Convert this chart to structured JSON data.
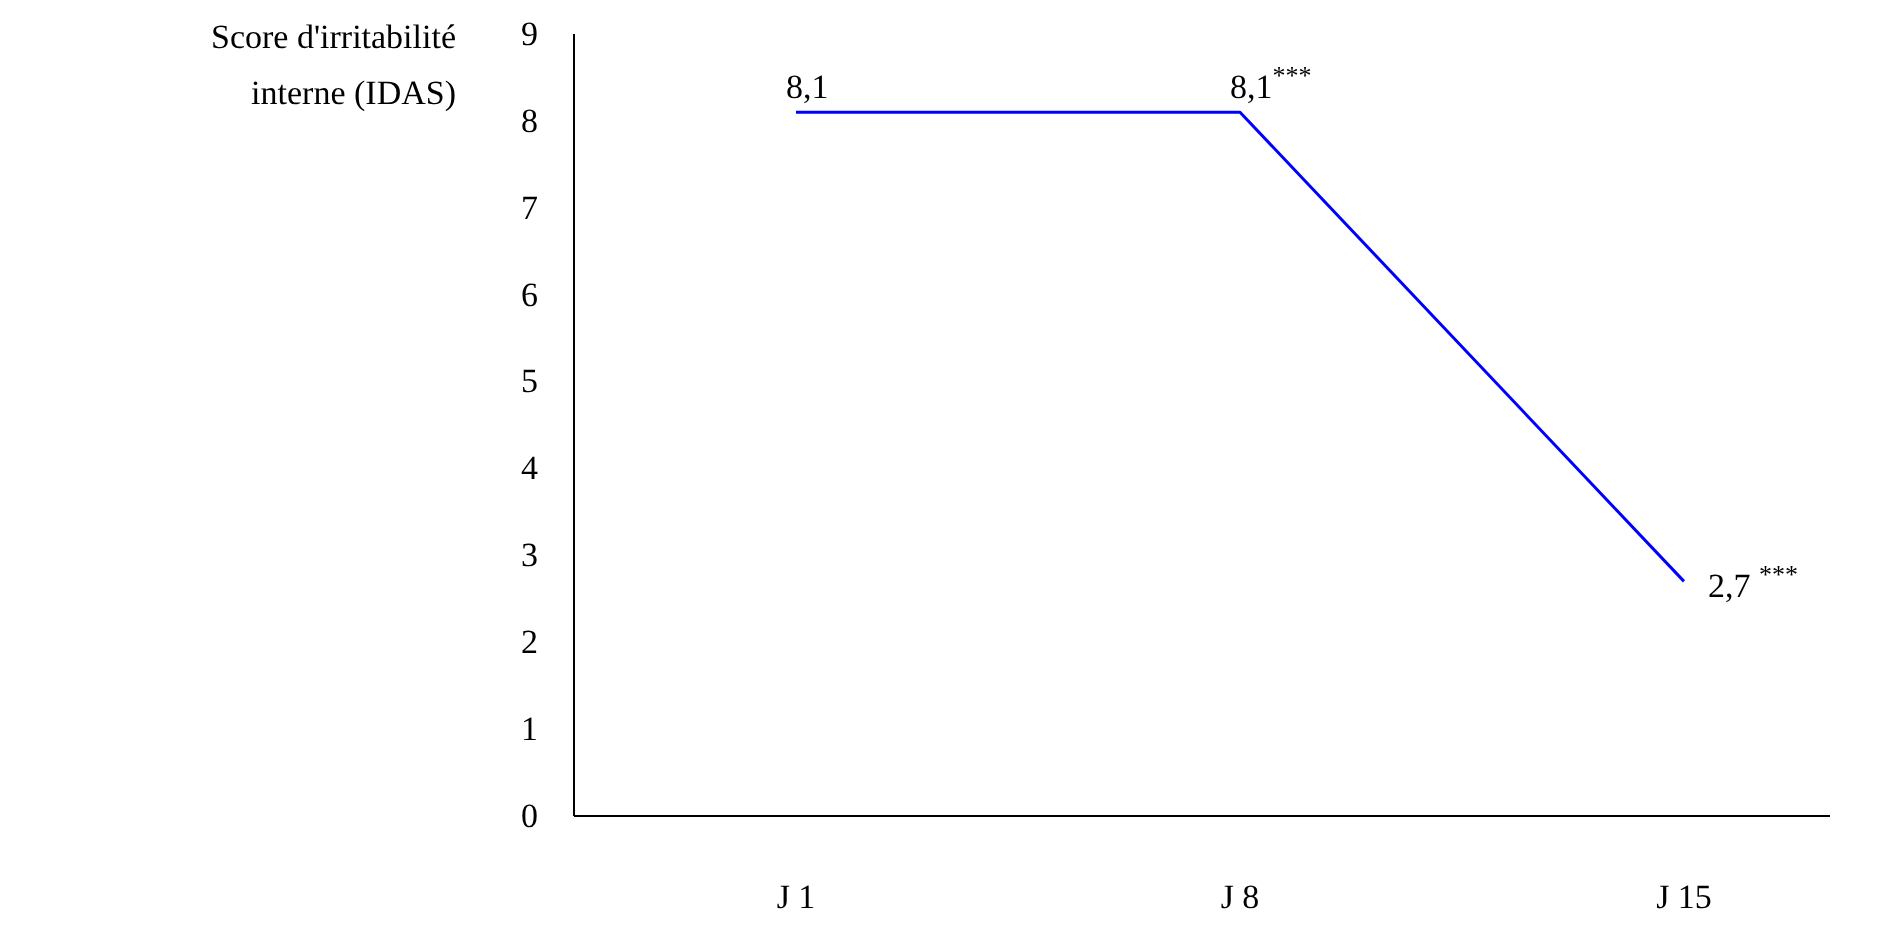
{
  "chart_data": {
    "type": "line",
    "ylabel": "Score d'irritabilité interne (IDAS)",
    "categories": [
      "J 1",
      "J 8",
      "J 15"
    ],
    "series": [
      {
        "color": "#0000ff",
        "values": [
          8.1,
          8.1,
          2.7
        ],
        "value_labels": [
          "8,1",
          "8,1$^{***}$",
          "2,7 $^{***}$"
        ]
      }
    ],
    "ylim": [
      0,
      9
    ],
    "yticks": [
      0,
      1,
      2,
      3,
      4,
      5,
      6,
      7,
      8,
      9
    ],
    "grid": false,
    "marker": "none",
    "line_style": "solid"
  }
}
